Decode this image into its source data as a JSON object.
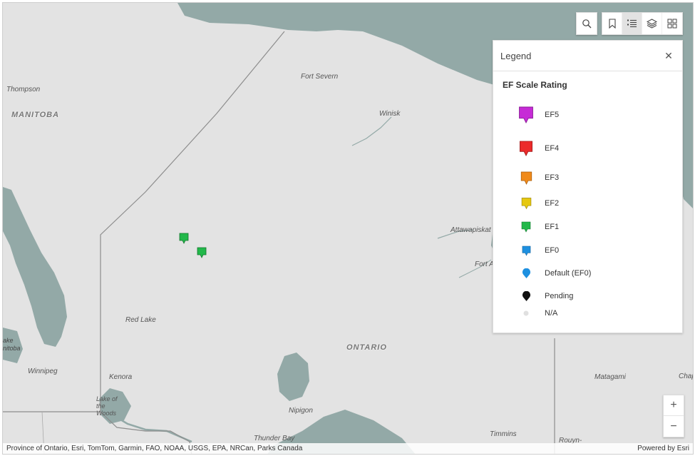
{
  "map": {
    "places": [
      {
        "id": "thompson",
        "label": "Thompson"
      },
      {
        "id": "fort-severn",
        "label": "Fort Severn"
      },
      {
        "id": "winisk",
        "label": "Winisk"
      },
      {
        "id": "attawapiskat",
        "label": "Attawapiskat"
      },
      {
        "id": "fort-albany",
        "label": "Fort A"
      },
      {
        "id": "red-lake",
        "label": "Red Lake"
      },
      {
        "id": "winnipeg",
        "label": "Winnipeg"
      },
      {
        "id": "kenora",
        "label": "Kenora"
      },
      {
        "id": "nipigon",
        "label": "Nipigon"
      },
      {
        "id": "thunder-bay",
        "label": "Thunder Bay"
      },
      {
        "id": "timmins",
        "label": "Timmins"
      },
      {
        "id": "matagami",
        "label": "Matagami"
      },
      {
        "id": "chap",
        "label": "Chap"
      },
      {
        "id": "rouyn",
        "label": "Rouyn-"
      },
      {
        "id": "lake-woods",
        "label": "Lake of the Woods"
      },
      {
        "id": "lake-winnipeg",
        "label": "ake nitoba"
      }
    ],
    "regions": [
      {
        "id": "manitoba",
        "label": "MANITOBA"
      },
      {
        "id": "ontario",
        "label": "ONTARIO"
      }
    ],
    "markers": [
      {
        "id": "marker-1",
        "rating": "EF1",
        "color": "#22b84a"
      },
      {
        "id": "marker-2",
        "rating": "EF1",
        "color": "#22b84a"
      }
    ]
  },
  "toolbar": {
    "search_icon": "search-icon",
    "bookmark_icon": "bookmark-icon",
    "legend_icon": "legend-list-icon",
    "layers_icon": "layers-icon",
    "basemap_icon": "basemap-gallery-icon"
  },
  "legend": {
    "title": "Legend",
    "layer_title": "EF Scale Rating",
    "items": [
      {
        "label": "EF5",
        "color": "#c62bd6",
        "shape": "pin"
      },
      {
        "label": "EF4",
        "color": "#ec2b2b",
        "shape": "pin"
      },
      {
        "label": "EF3",
        "color": "#f08a1a",
        "shape": "pin"
      },
      {
        "label": "EF2",
        "color": "#e6c810",
        "shape": "pin"
      },
      {
        "label": "EF1",
        "color": "#22b84a",
        "shape": "pin"
      },
      {
        "label": "EF0",
        "color": "#1e90e0",
        "shape": "pin"
      },
      {
        "label": "Default (EF0)",
        "color": "#1e90e0",
        "shape": "drop"
      },
      {
        "label": "Pending",
        "color": "#111111",
        "shape": "drop"
      },
      {
        "label": "N/A",
        "color": "#e0e0e0",
        "shape": "dot"
      }
    ]
  },
  "zoom": {
    "in": "+",
    "out": "−"
  },
  "attribution": {
    "sources": "Province of Ontario, Esri, TomTom, Garmin, FAO, NOAA, USGS, EPA, NRCan, Parks Canada",
    "powered": "Powered by Esri"
  },
  "colors": {
    "water": "#93a9a7",
    "land": "#e3e3e3",
    "border": "#8d8d8d"
  }
}
